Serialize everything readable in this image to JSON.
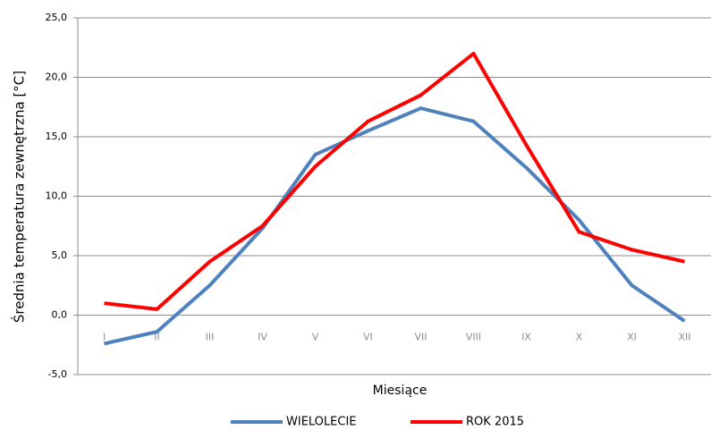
{
  "chart_data": {
    "type": "line",
    "y_label": "Średnia temperatura zewnętrzna [°C]",
    "x_label": "Miesiące",
    "categories": [
      "I",
      "II",
      "III",
      "IV",
      "V",
      "VI",
      "VII",
      "VIII",
      "IX",
      "X",
      "XI",
      "XII"
    ],
    "series": [
      {
        "name": "WIELOLECIE",
        "color": "#4f81bd",
        "values": [
          -2.4,
          -1.4,
          2.5,
          7.3,
          13.5,
          15.5,
          17.4,
          16.3,
          12.4,
          8.0,
          2.5,
          -0.5
        ]
      },
      {
        "name": "ROK 2015",
        "color": "#ff0000",
        "values": [
          1.0,
          0.5,
          4.5,
          7.5,
          12.5,
          16.3,
          18.5,
          22.0,
          14.3,
          7.0,
          5.5,
          4.5
        ]
      }
    ],
    "ylim": [
      -5,
      25
    ],
    "yticks": [
      {
        "value": -5,
        "label": "-5,0"
      },
      {
        "value": 0,
        "label": "0,0"
      },
      {
        "value": 5,
        "label": "5,0"
      },
      {
        "value": 10,
        "label": "10,0"
      },
      {
        "value": 15,
        "label": "15,0"
      },
      {
        "value": 20,
        "label": "20,0"
      },
      {
        "value": 25,
        "label": "25,0"
      }
    ],
    "grid": true,
    "legend": "bottom"
  }
}
